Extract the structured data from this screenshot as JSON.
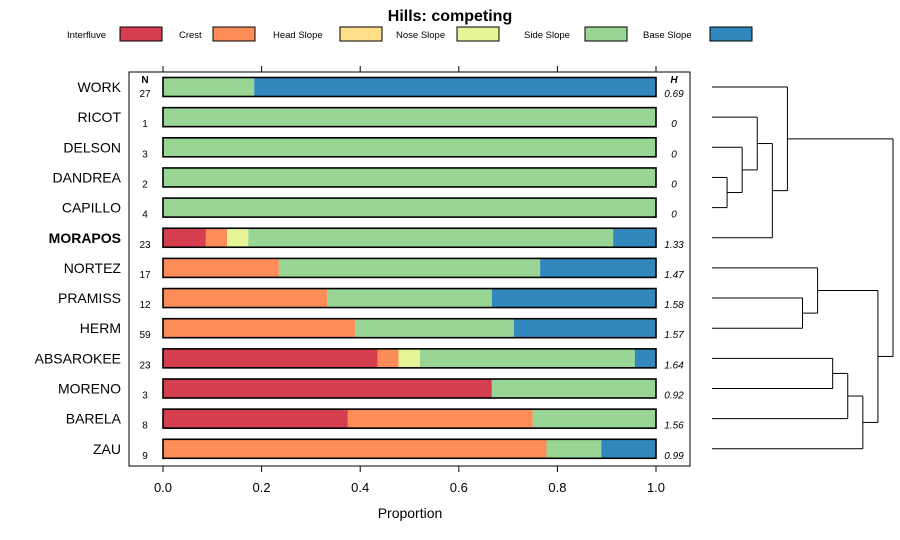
{
  "chart_data": {
    "type": "bar",
    "stacked": true,
    "orientation": "horizontal",
    "title": "Hills: competing",
    "xlabel": "Proportion",
    "xlim": [
      0,
      1
    ],
    "xticks": [
      "0.0",
      "0.2",
      "0.4",
      "0.6",
      "0.8",
      "1.0"
    ],
    "n_header": "N",
    "h_header": "H",
    "highlight": "MORAPOS",
    "legend": [
      {
        "name": "Interfluve",
        "color": "#D53E4F"
      },
      {
        "name": "Crest",
        "color": "#FC8D59"
      },
      {
        "name": "Head Slope",
        "color": "#FEE08B"
      },
      {
        "name": "Nose Slope",
        "color": "#E6F598"
      },
      {
        "name": "Side Slope",
        "color": "#99D594"
      },
      {
        "name": "Base Slope",
        "color": "#3288BD"
      }
    ],
    "rows": [
      {
        "label": "WORK",
        "n": "27",
        "h": "0.69",
        "values": [
          0,
          0,
          0,
          0,
          0.185,
          0.815
        ]
      },
      {
        "label": "RICOT",
        "n": "1",
        "h": "0",
        "values": [
          0,
          0,
          0,
          0,
          1.0,
          0
        ]
      },
      {
        "label": "DELSON",
        "n": "3",
        "h": "0",
        "values": [
          0,
          0,
          0,
          0,
          1.0,
          0
        ]
      },
      {
        "label": "DANDREA",
        "n": "2",
        "h": "0",
        "values": [
          0,
          0,
          0,
          0,
          1.0,
          0
        ]
      },
      {
        "label": "CAPILLO",
        "n": "4",
        "h": "0",
        "values": [
          0,
          0,
          0,
          0,
          1.0,
          0
        ]
      },
      {
        "label": "MORAPOS",
        "n": "23",
        "h": "1.33",
        "values": [
          0.087,
          0.043,
          0,
          0.043,
          0.74,
          0.087
        ]
      },
      {
        "label": "NORTEZ",
        "n": "17",
        "h": "1.47",
        "values": [
          0,
          0.235,
          0,
          0,
          0.53,
          0.235
        ]
      },
      {
        "label": "PRAMISS",
        "n": "12",
        "h": "1.58",
        "values": [
          0,
          0.333,
          0,
          0,
          0.334,
          0.333
        ]
      },
      {
        "label": "HERM",
        "n": "59",
        "h": "1.57",
        "values": [
          0,
          0.39,
          0,
          0,
          0.322,
          0.288
        ]
      },
      {
        "label": "ABSAROKEE",
        "n": "23",
        "h": "1.64",
        "values": [
          0.435,
          0.043,
          0,
          0.043,
          0.436,
          0.043
        ]
      },
      {
        "label": "MORENO",
        "n": "3",
        "h": "0.92",
        "values": [
          0.667,
          0,
          0,
          0,
          0.333,
          0
        ]
      },
      {
        "label": "BARELA",
        "n": "8",
        "h": "1.56",
        "values": [
          0.375,
          0.375,
          0,
          0,
          0.25,
          0
        ]
      },
      {
        "label": "ZAU",
        "n": "9",
        "h": "0.99",
        "values": [
          0,
          0.778,
          0,
          0,
          0.111,
          0.111
        ]
      }
    ],
    "dendrogram": {
      "description": "hierarchical clustering of rows",
      "merges": [
        [
          [
            "DANDREA"
          ],
          [
            "CAPILLO"
          ]
        ],
        [
          [
            "DELSON"
          ],
          [
            "DANDREA",
            "CAPILLO"
          ]
        ],
        [
          [
            "RICOT"
          ],
          [
            "DELSON",
            "DANDREA",
            "CAPILLO"
          ]
        ],
        [
          [
            "RICOT",
            "DELSON",
            "DANDREA",
            "CAPILLO"
          ],
          [
            "MORAPOS"
          ]
        ],
        [
          [
            "WORK"
          ],
          [
            "RICOT",
            "DELSON",
            "DANDREA",
            "CAPILLO",
            "MORAPOS"
          ]
        ],
        [
          [
            "PRAMISS"
          ],
          [
            "HERM"
          ]
        ],
        [
          [
            "NORTEZ"
          ],
          [
            "PRAMISS",
            "HERM"
          ]
        ],
        [
          [
            "ABSAROKEE"
          ],
          [
            "MORENO"
          ]
        ],
        [
          [
            "ABSAROKEE",
            "MORENO"
          ],
          [
            "BARELA"
          ]
        ],
        [
          [
            "ABSAROKEE",
            "MORENO",
            "BARELA"
          ],
          [
            "ZAU"
          ]
        ],
        [
          [
            "NORTEZ",
            "PRAMISS",
            "HERM"
          ],
          [
            "ABSAROKEE",
            "MORENO",
            "BARELA",
            "ZAU"
          ]
        ],
        [
          [
            "WORK",
            "RICOT",
            "DELSON",
            "DANDREA",
            "CAPILLO",
            "MORAPOS"
          ],
          [
            "NORTEZ",
            "PRAMISS",
            "HERM",
            "ABSAROKEE",
            "MORENO",
            "BARELA",
            "ZAU"
          ]
        ]
      ]
    }
  }
}
